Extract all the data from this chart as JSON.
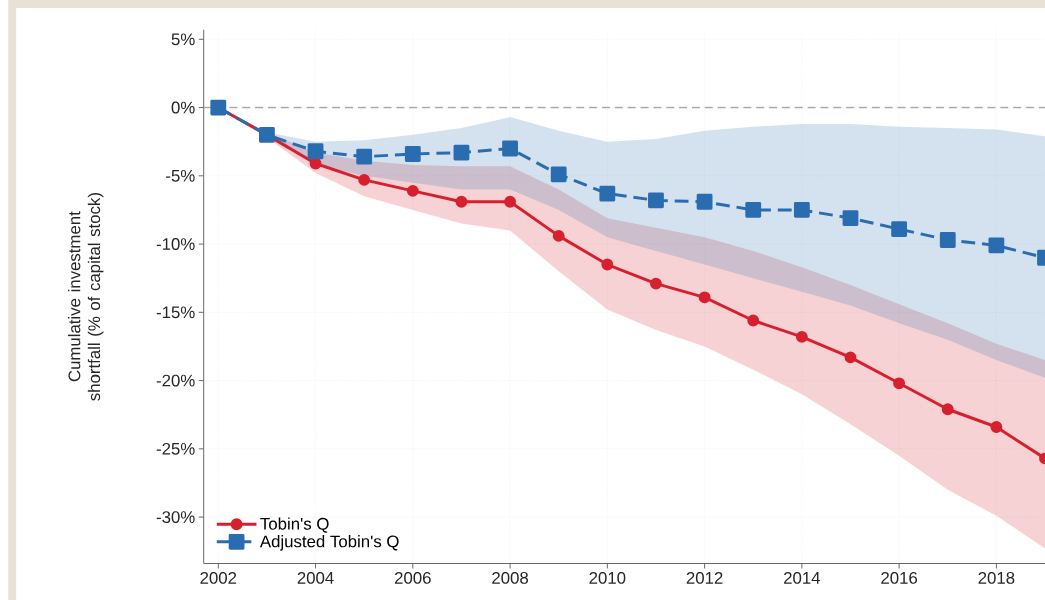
{
  "chart_data": {
    "type": "line",
    "ylabel": "Cumulative investment shortfall (% of capital stock)",
    "x": [
      2002,
      2003,
      2004,
      2005,
      2006,
      2007,
      2008,
      2009,
      2010,
      2011,
      2012,
      2013,
      2014,
      2015,
      2016,
      2017,
      2018,
      2019
    ],
    "series": [
      {
        "name": "Tobin's Q",
        "color": "#d7202e",
        "marker": "circle",
        "line_style": "solid",
        "values": [
          0,
          -2.0,
          -4.1,
          -5.3,
          -6.1,
          -6.9,
          -6.9,
          -9.4,
          -11.5,
          -12.9,
          -13.9,
          -15.6,
          -16.8,
          -18.3,
          -20.2,
          -22.1,
          -23.4,
          -25.7
        ],
        "upper": [
          0,
          -1.8,
          -3.3,
          -3.9,
          -4.2,
          -4.3,
          -4.3,
          -6.0,
          -8.1,
          -8.8,
          -9.5,
          -10.5,
          -11.7,
          -13.0,
          -14.4,
          -15.8,
          -17.3,
          -18.5
        ],
        "lower": [
          0,
          -2.2,
          -4.8,
          -6.5,
          -7.5,
          -8.5,
          -9.0,
          -12.0,
          -14.8,
          -16.3,
          -17.5,
          -19.2,
          -21.0,
          -23.2,
          -25.5,
          -28.0,
          -29.9,
          -32.3
        ]
      },
      {
        "name": "Adjusted Tobin's Q",
        "color": "#2a6cb0",
        "marker": "square",
        "line_style": "dashed",
        "values": [
          0,
          -2.0,
          -3.2,
          -3.6,
          -3.4,
          -3.3,
          -3.0,
          -4.9,
          -6.3,
          -6.8,
          -6.9,
          -7.5,
          -7.5,
          -8.1,
          -8.9,
          -9.7,
          -10.1,
          -11.0
        ],
        "upper": [
          0,
          -1.8,
          -2.5,
          -2.4,
          -2.0,
          -1.5,
          -0.7,
          -1.7,
          -2.5,
          -2.3,
          -1.7,
          -1.4,
          -1.2,
          -1.2,
          -1.4,
          -1.5,
          -1.6,
          -2.1
        ],
        "lower": [
          0,
          -2.2,
          -4.2,
          -5.0,
          -5.5,
          -6.0,
          -6.0,
          -7.5,
          -9.5,
          -10.5,
          -11.5,
          -12.5,
          -13.5,
          -14.5,
          -15.8,
          -17.0,
          -18.5,
          -19.8
        ]
      }
    ],
    "xlim": [
      2001.7,
      2019.0
    ],
    "ylim": [
      -33.4,
      5.7
    ],
    "xticks": [
      2002,
      2004,
      2006,
      2008,
      2010,
      2012,
      2014,
      2016,
      2018
    ],
    "yticks": [
      {
        "value": 5,
        "label": "5%"
      },
      {
        "value": 0,
        "label": "0%"
      },
      {
        "value": -5,
        "label": "-5%"
      },
      {
        "value": -10,
        "label": "-10%"
      },
      {
        "value": -15,
        "label": "-15%"
      },
      {
        "value": -20,
        "label": "-20%"
      },
      {
        "value": -25,
        "label": "-25%"
      },
      {
        "value": -30,
        "label": "-30%"
      }
    ],
    "ref_lines": [
      {
        "axis": "y",
        "value": 0,
        "color": "#a8a8a8",
        "line_style": "dashed"
      }
    ],
    "grid": true,
    "legend": "bottom left"
  }
}
